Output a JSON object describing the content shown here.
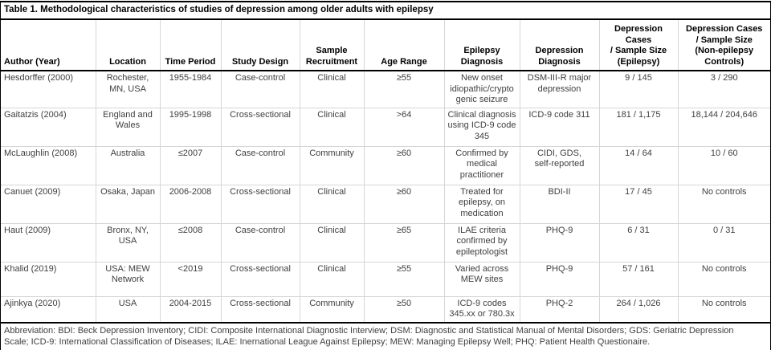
{
  "title": "Table 1. Methodological characteristics of studies of depression among older adults with epilepsy",
  "colors": {
    "rule_black": "#000000",
    "gridline": "#d6d6d6",
    "header_text": "#000000",
    "body_text": "#404040"
  },
  "table": {
    "column_keys": [
      "author",
      "location",
      "time-period",
      "study-design",
      "sample-recruitment",
      "age-range",
      "epilepsy-diagnosis",
      "depression-diagnosis",
      "cases-epilepsy",
      "cases-controls"
    ],
    "columns": [
      "Author (Year)",
      "Location",
      "Time Period",
      "Study Design",
      "Sample\nRecruitment",
      "Age Range",
      "Epilepsy\nDiagnosis",
      "Depression\nDiagnosis",
      "Depression Cases\n/ Sample Size\n(Epilepsy)",
      "Depression Cases\n/ Sample Size\n(Non-epilepsy\nControls)"
    ],
    "rows": [
      {
        "cells": [
          "Hesdorffer (2000)",
          "Rochester,\nMN, USA",
          "1955-1984",
          "Case-control",
          "Clinical",
          "≥55",
          "New onset\nidiopathic/crypto\ngenic seizure",
          "DSM-III-R major\ndepression",
          "9 / 145",
          "3 / 290"
        ]
      },
      {
        "cells": [
          "Gaitatzis (2004)",
          "England and\nWales",
          "1995-1998",
          "Cross-sectional",
          "Clinical",
          ">64",
          "Clinical diagnosis\nusing ICD-9 code\n345",
          "ICD-9 code 311",
          "181 / 1,175",
          "18,144 / 204,646"
        ]
      },
      {
        "cells": [
          "McLaughlin (2008)",
          "Australia",
          "≤2007",
          "Case-control",
          "Community",
          "≥60",
          "Confirmed by\nmedical\npractitioner",
          "CIDI, GDS,\nself-reported",
          "14 / 64",
          "10 / 60"
        ]
      },
      {
        "cells": [
          "Canuet (2009)",
          "Osaka, Japan",
          "2006-2008",
          "Cross-sectional",
          "Clinical",
          "≥60",
          "Treated for\nepilepsy, on\nmedication",
          "BDI-II",
          "17 / 45",
          "No controls"
        ]
      },
      {
        "cells": [
          "Haut (2009)",
          "Bronx, NY,\nUSA",
          "≤2008",
          "Case-control",
          "Clinical",
          "≥65",
          "ILAE criteria\nconfirmed by\nepileptologist",
          "PHQ-9",
          "6 / 31",
          "0 / 31"
        ]
      },
      {
        "cells": [
          "Khalid (2019)",
          "USA: MEW\nNetwork",
          "<2019",
          "Cross-sectional",
          "Clinical",
          "≥55",
          "Varied across\nMEW sites",
          "PHQ-9",
          "57 / 161",
          "No controls"
        ]
      },
      {
        "cells": [
          "Ajinkya (2020)",
          "USA",
          "2004-2015",
          "Cross-sectional",
          "Community",
          "≥50",
          "ICD-9 codes\n345.xx or 780.3x",
          "PHQ-2",
          "264 / 1,026",
          "No controls"
        ]
      }
    ]
  },
  "footnote": {
    "line1": "Abbreviation: BDI: Beck Depression Inventory; CIDI: Composite International Diagnostic Interview; DSM: Diagnostic and Statistical Manual of Mental Disorders; GDS: Geriatric Depression",
    "line2": "Scale; ICD-9: International Classification of Diseases; ILAE: Inernational League Against Epilepsy; MEW: Managing Epilepsy Well; PHQ: Patient Health Questionaire."
  }
}
